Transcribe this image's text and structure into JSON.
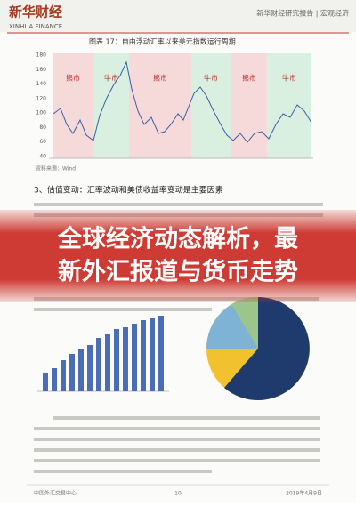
{
  "header": {
    "brand": "新华财经",
    "brand_en": "XINHUA FINANCE",
    "right": "新华财经研究报告 | 宏观经济"
  },
  "figure": {
    "title": "图表 17：自由浮动汇率以来美元指数运行周期",
    "phases": [
      "熊市",
      "牛市",
      "熊市",
      "牛市",
      "熊市",
      "牛市"
    ],
    "yticks": [
      "180",
      "160",
      "140",
      "120",
      "100",
      "80",
      "60",
      "40"
    ],
    "source": "资料来源：Wind"
  },
  "section": {
    "heading": "3、估值变动：汇率波动和美债收益率变动是主要因素"
  },
  "banner": {
    "line1": "全球经济动态解析，最",
    "line2": "新外汇报道与货币走势"
  },
  "footer": {
    "left": "中国外汇交易中心",
    "page": "10",
    "date": "2019年4月9日"
  }
}
